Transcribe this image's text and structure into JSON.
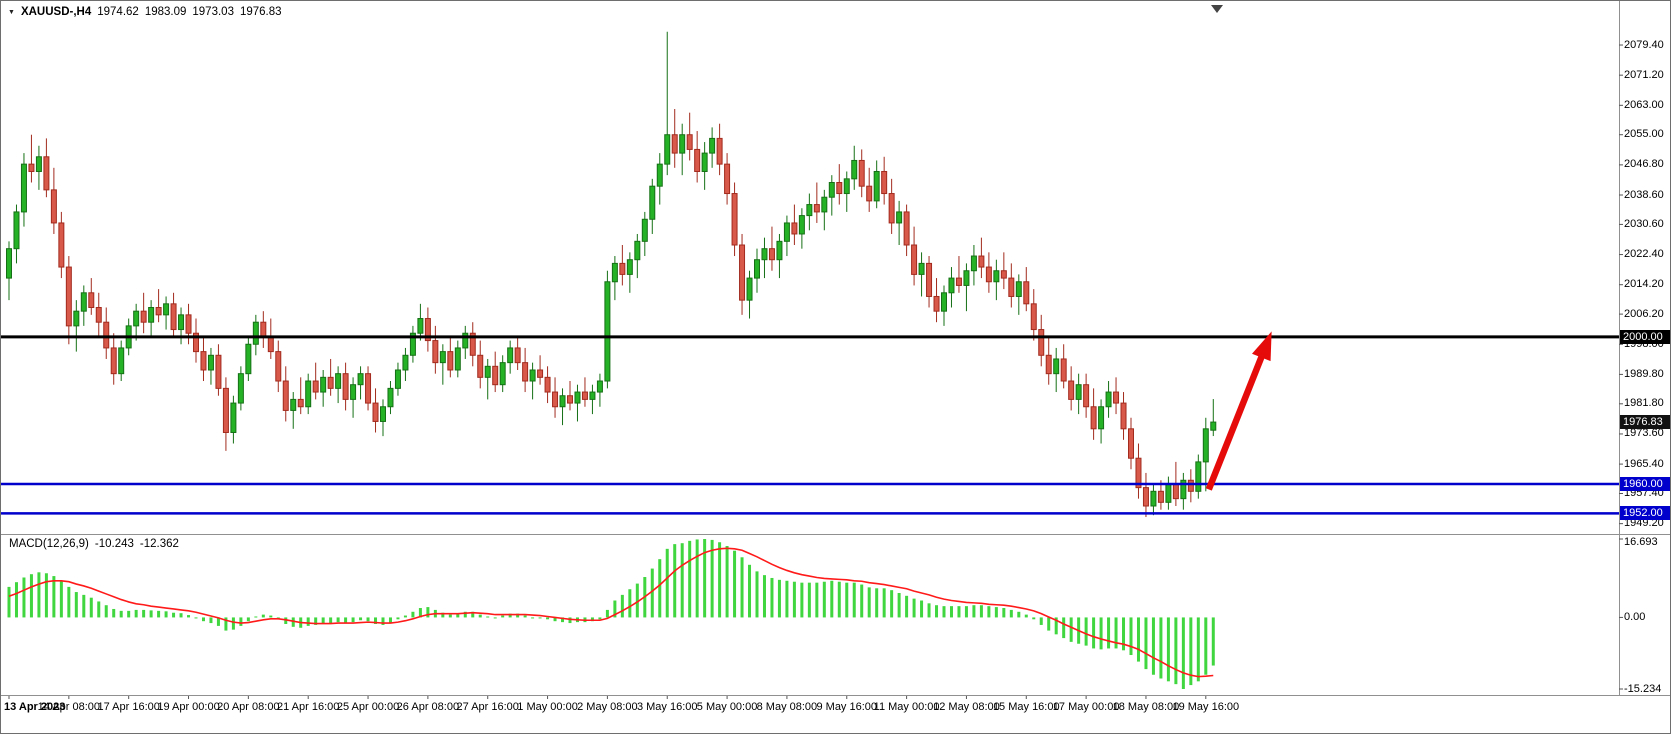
{
  "icons": {
    "dropdown": "▼"
  },
  "header": {
    "symbol_period": "XAUUSD-,H4",
    "open": "1974.62",
    "high": "1983.09",
    "low": "1973.03",
    "close": "1976.83"
  },
  "macd_label": {
    "name": "MACD(12,26,9)",
    "main": "-10.243",
    "signal": "-12.362"
  },
  "chart_data": {
    "type": "candlestick",
    "symbol": "XAUUSD-",
    "timeframe": "H4",
    "title": "XAUUSD- H4 candlestick chart with MACD(12,26,9), support lines at 1960.00 / 1952.00, resistance at 2000.00 and red up-arrow annotation",
    "colors": {
      "candle_up": "#26b226",
      "candle_up_border": "#157015",
      "candle_down": "#d8584a",
      "candle_down_border": "#a22b1e",
      "macd_histogram": "#3fd63f",
      "macd_signal": "#ff1a1a",
      "level_black": "#000000",
      "level_blue": "#0000cc",
      "arrow": "#e60b0b",
      "badge_current": "#111111"
    },
    "price_panel": {
      "ylim": [
        1947.2,
        2089.2
      ],
      "current_price": 1976.83
    },
    "hlines": [
      {
        "price": 2000.0,
        "color": "#000000",
        "width": 3
      },
      {
        "price": 1960.0,
        "color": "#0000cc",
        "width": 2.5
      },
      {
        "price": 1952.0,
        "color": "#0000cc",
        "width": 2.5
      }
    ],
    "candles": [
      [
        2016,
        2026,
        2010,
        2024
      ],
      [
        2024,
        2036,
        2020,
        2034
      ],
      [
        2034,
        2050,
        2030,
        2047
      ],
      [
        2047,
        2055,
        2042,
        2045
      ],
      [
        2045,
        2052,
        2040,
        2049
      ],
      [
        2049,
        2054,
        2038,
        2040
      ],
      [
        2040,
        2046,
        2028,
        2031
      ],
      [
        2031,
        2034,
        2016,
        2019
      ],
      [
        2019,
        2022,
        1998,
        2003
      ],
      [
        2003,
        2010,
        1996,
        2007
      ],
      [
        2007,
        2014,
        2003,
        2012
      ],
      [
        2012,
        2016,
        2006,
        2008
      ],
      [
        2008,
        2012,
        2000,
        2004
      ],
      [
        2004,
        2008,
        1994,
        1997
      ],
      [
        1997,
        2001,
        1987,
        1990
      ],
      [
        1990,
        1999,
        1988,
        1997
      ],
      [
        1997,
        2005,
        1995,
        2003
      ],
      [
        2003,
        2009,
        1999,
        2007
      ],
      [
        2007,
        2012,
        2001,
        2004
      ],
      [
        2004,
        2010,
        2000,
        2008
      ],
      [
        2008,
        2013,
        2004,
        2006
      ],
      [
        2006,
        2011,
        2002,
        2009
      ],
      [
        2009,
        2012,
        2000,
        2002
      ],
      [
        2002,
        2008,
        1998,
        2006
      ],
      [
        2006,
        2009,
        1998,
        2001
      ],
      [
        2001,
        2005,
        1993,
        1996
      ],
      [
        1996,
        2000,
        1988,
        1991
      ],
      [
        1991,
        1997,
        1987,
        1995
      ],
      [
        1995,
        1998,
        1984,
        1986
      ],
      [
        1986,
        1989,
        1969,
        1974
      ],
      [
        1974,
        1984,
        1971,
        1982
      ],
      [
        1982,
        1992,
        1980,
        1990
      ],
      [
        1990,
        2000,
        1988,
        1998
      ],
      [
        1998,
        2006,
        1995,
        2004
      ],
      [
        2004,
        2007,
        1997,
        2000
      ],
      [
        2000,
        2005,
        1994,
        1996
      ],
      [
        1996,
        1999,
        1985,
        1988
      ],
      [
        1988,
        1992,
        1977,
        1980
      ],
      [
        1980,
        1985,
        1975,
        1983
      ],
      [
        1983,
        1989,
        1979,
        1981
      ],
      [
        1981,
        1990,
        1979,
        1988
      ],
      [
        1988,
        1993,
        1983,
        1985
      ],
      [
        1985,
        1991,
        1981,
        1989
      ],
      [
        1989,
        1994,
        1984,
        1986
      ],
      [
        1986,
        1992,
        1982,
        1990
      ],
      [
        1990,
        1993,
        1980,
        1983
      ],
      [
        1983,
        1989,
        1978,
        1987
      ],
      [
        1987,
        1992,
        1983,
        1990
      ],
      [
        1990,
        1992,
        1980,
        1982
      ],
      [
        1982,
        1986,
        1974,
        1977
      ],
      [
        1977,
        1983,
        1973,
        1981
      ],
      [
        1981,
        1988,
        1979,
        1986
      ],
      [
        1986,
        1993,
        1984,
        1991
      ],
      [
        1991,
        1997,
        1988,
        1995
      ],
      [
        1995,
        2003,
        1993,
        2001
      ],
      [
        2001,
        2009,
        1999,
        2005
      ],
      [
        2005,
        2008,
        1996,
        1999
      ],
      [
        1999,
        2003,
        1990,
        1993
      ],
      [
        1993,
        1998,
        1987,
        1996
      ],
      [
        1996,
        2000,
        1989,
        1991
      ],
      [
        1991,
        1999,
        1989,
        1997
      ],
      [
        1997,
        2003,
        1994,
        2001
      ],
      [
        2001,
        2004,
        1992,
        1995
      ],
      [
        1995,
        1999,
        1986,
        1989
      ],
      [
        1989,
        1994,
        1983,
        1992
      ],
      [
        1992,
        1996,
        1985,
        1987
      ],
      [
        1987,
        1995,
        1985,
        1993
      ],
      [
        1993,
        1999,
        1990,
        1997
      ],
      [
        1997,
        2000,
        1991,
        1993
      ],
      [
        1993,
        1997,
        1985,
        1988
      ],
      [
        1988,
        1993,
        1983,
        1991
      ],
      [
        1991,
        1995,
        1987,
        1989
      ],
      [
        1989,
        1992,
        1982,
        1985
      ],
      [
        1985,
        1989,
        1978,
        1981
      ],
      [
        1981,
        1986,
        1976,
        1984
      ],
      [
        1984,
        1988,
        1980,
        1982
      ],
      [
        1982,
        1987,
        1977,
        1985
      ],
      [
        1985,
        1989,
        1981,
        1983
      ],
      [
        1983,
        1987,
        1979,
        1985
      ],
      [
        1985,
        1990,
        1981,
        1988
      ],
      [
        1988,
        2018,
        1986,
        2015
      ],
      [
        2015,
        2022,
        2010,
        2020
      ],
      [
        2020,
        2025,
        2014,
        2017
      ],
      [
        2017,
        2023,
        2012,
        2021
      ],
      [
        2021,
        2028,
        2016,
        2026
      ],
      [
        2026,
        2034,
        2022,
        2032
      ],
      [
        2032,
        2043,
        2028,
        2041
      ],
      [
        2041,
        2050,
        2036,
        2047
      ],
      [
        2047,
        2083,
        2044,
        2055
      ],
      [
        2055,
        2062,
        2046,
        2050
      ],
      [
        2050,
        2058,
        2044,
        2055
      ],
      [
        2055,
        2061,
        2048,
        2051
      ],
      [
        2051,
        2056,
        2042,
        2045
      ],
      [
        2045,
        2053,
        2040,
        2050
      ],
      [
        2050,
        2057,
        2046,
        2054
      ],
      [
        2054,
        2058,
        2044,
        2047
      ],
      [
        2047,
        2050,
        2036,
        2039
      ],
      [
        2039,
        2042,
        2022,
        2025
      ],
      [
        2025,
        2028,
        2006,
        2010
      ],
      [
        2010,
        2018,
        2005,
        2016
      ],
      [
        2016,
        2024,
        2012,
        2021
      ],
      [
        2021,
        2027,
        2016,
        2024
      ],
      [
        2024,
        2030,
        2018,
        2021
      ],
      [
        2021,
        2028,
        2016,
        2026
      ],
      [
        2026,
        2033,
        2022,
        2031
      ],
      [
        2031,
        2036,
        2025,
        2028
      ],
      [
        2028,
        2035,
        2024,
        2033
      ],
      [
        2033,
        2039,
        2029,
        2036
      ],
      [
        2036,
        2042,
        2031,
        2034
      ],
      [
        2034,
        2040,
        2029,
        2038
      ],
      [
        2038,
        2044,
        2033,
        2042
      ],
      [
        2042,
        2047,
        2036,
        2039
      ],
      [
        2039,
        2045,
        2034,
        2043
      ],
      [
        2043,
        2052,
        2040,
        2048
      ],
      [
        2048,
        2051,
        2038,
        2041
      ],
      [
        2041,
        2046,
        2034,
        2037
      ],
      [
        2037,
        2048,
        2035,
        2045
      ],
      [
        2045,
        2049,
        2036,
        2039
      ],
      [
        2039,
        2043,
        2028,
        2031
      ],
      [
        2031,
        2037,
        2025,
        2034
      ],
      [
        2034,
        2036,
        2022,
        2025
      ],
      [
        2025,
        2030,
        2014,
        2017
      ],
      [
        2017,
        2023,
        2011,
        2020
      ],
      [
        2020,
        2022,
        2008,
        2011
      ],
      [
        2011,
        2016,
        2004,
        2007
      ],
      [
        2007,
        2014,
        2003,
        2012
      ],
      [
        2012,
        2019,
        2008,
        2016
      ],
      [
        2016,
        2022,
        2012,
        2014
      ],
      [
        2014,
        2020,
        2007,
        2018
      ],
      [
        2018,
        2025,
        2014,
        2022
      ],
      [
        2022,
        2027,
        2016,
        2019
      ],
      [
        2019,
        2023,
        2012,
        2015
      ],
      [
        2015,
        2021,
        2010,
        2018
      ],
      [
        2018,
        2023,
        2013,
        2016
      ],
      [
        2016,
        2020,
        2008,
        2011
      ],
      [
        2011,
        2017,
        2006,
        2015
      ],
      [
        2015,
        2019,
        2007,
        2009
      ],
      [
        2009,
        2013,
        1999,
        2002
      ],
      [
        2002,
        2006,
        1992,
        1995
      ],
      [
        1995,
        2000,
        1987,
        1990
      ],
      [
        1990,
        1997,
        1985,
        1994
      ],
      [
        1994,
        1998,
        1986,
        1988
      ],
      [
        1988,
        1992,
        1980,
        1983
      ],
      [
        1983,
        1990,
        1979,
        1987
      ],
      [
        1987,
        1990,
        1978,
        1981
      ],
      [
        1981,
        1986,
        1972,
        1975
      ],
      [
        1975,
        1983,
        1971,
        1981
      ],
      [
        1981,
        1988,
        1978,
        1985
      ],
      [
        1985,
        1989,
        1979,
        1982
      ],
      [
        1982,
        1985,
        1972,
        1975
      ],
      [
        1975,
        1978,
        1964,
        1967
      ],
      [
        1967,
        1971,
        1956,
        1959
      ],
      [
        1959,
        1963,
        1951,
        1954
      ],
      [
        1954,
        1960,
        1951.5,
        1958
      ],
      [
        1958,
        1961,
        1953,
        1955
      ],
      [
        1955,
        1962,
        1953,
        1960
      ],
      [
        1960,
        1966,
        1954,
        1956
      ],
      [
        1956,
        1963,
        1953,
        1961
      ],
      [
        1961,
        1964,
        1955,
        1958
      ],
      [
        1958,
        1968,
        1956,
        1966
      ],
      [
        1966,
        1978,
        1958,
        1975
      ],
      [
        1974.62,
        1983.09,
        1973.03,
        1976.83
      ]
    ],
    "macd": {
      "ylim": [
        -15.234,
        16.693
      ],
      "histogram": [
        6.5,
        7.5,
        8.5,
        9.2,
        9.6,
        9.4,
        8.8,
        7.8,
        6.5,
        5.4,
        4.8,
        4.2,
        3.4,
        2.6,
        1.8,
        1.4,
        1.4,
        1.6,
        1.6,
        1.5,
        1.4,
        1.3,
        1.0,
        0.9,
        0.5,
        0.0,
        -0.8,
        -1.2,
        -1.8,
        -2.8,
        -2.6,
        -1.8,
        -0.8,
        0.2,
        0.6,
        0.4,
        -0.4,
        -1.4,
        -2.0,
        -2.2,
        -1.8,
        -1.6,
        -1.4,
        -1.2,
        -1.0,
        -1.2,
        -1.0,
        -0.6,
        -0.8,
        -1.4,
        -1.6,
        -1.2,
        -0.4,
        0.4,
        1.2,
        2.0,
        2.2,
        1.6,
        1.0,
        0.6,
        0.8,
        1.2,
        1.2,
        0.6,
        0.2,
        0.0,
        0.4,
        0.8,
        0.8,
        0.4,
        0.0,
        0.0,
        -0.4,
        -0.8,
        -1.0,
        -1.2,
        -1.0,
        -1.0,
        -0.8,
        -0.4,
        1.6,
        3.6,
        4.8,
        6.0,
        7.2,
        8.6,
        10.4,
        12.4,
        14.6,
        15.6,
        15.8,
        16.3,
        16.6,
        16.693,
        16.5,
        16.0,
        15.2,
        14.2,
        12.8,
        11.2,
        9.8,
        9.0,
        8.4,
        8.0,
        7.8,
        7.6,
        7.4,
        7.4,
        7.4,
        7.6,
        7.8,
        7.6,
        7.4,
        7.4,
        7.0,
        6.4,
        6.2,
        6.2,
        5.8,
        5.2,
        4.6,
        4.0,
        3.6,
        3.0,
        2.6,
        2.4,
        2.4,
        2.4,
        2.4,
        2.6,
        2.6,
        2.4,
        2.2,
        2.0,
        1.6,
        1.2,
        0.6,
        -0.4,
        -1.6,
        -2.8,
        -3.6,
        -4.4,
        -5.2,
        -5.6,
        -6.0,
        -6.6,
        -6.8,
        -6.6,
        -6.6,
        -7.0,
        -8.0,
        -9.4,
        -11.0,
        -12.2,
        -13.0,
        -13.6,
        -14.2,
        -15.234,
        -14.4,
        -13.6,
        -12.2,
        -10.243
      ],
      "signal": [
        4.5,
        5.1,
        5.8,
        6.5,
        7.1,
        7.6,
        7.8,
        7.8,
        7.6,
        7.1,
        6.7,
        6.2,
        5.6,
        5.0,
        4.4,
        3.8,
        3.3,
        2.9,
        2.7,
        2.4,
        2.2,
        2.0,
        1.8,
        1.6,
        1.4,
        1.1,
        0.7,
        0.3,
        -0.1,
        -0.6,
        -1.0,
        -1.2,
        -1.1,
        -0.8,
        -0.5,
        -0.3,
        -0.3,
        -0.5,
        -0.8,
        -1.1,
        -1.2,
        -1.3,
        -1.3,
        -1.3,
        -1.2,
        -1.2,
        -1.2,
        -1.1,
        -1.0,
        -1.1,
        -1.2,
        -1.2,
        -1.0,
        -0.7,
        -0.3,
        0.2,
        0.6,
        0.8,
        0.8,
        0.8,
        0.8,
        0.9,
        1.0,
        0.9,
        0.8,
        0.6,
        0.6,
        0.6,
        0.6,
        0.6,
        0.5,
        0.4,
        0.2,
        0.0,
        -0.2,
        -0.4,
        -0.5,
        -0.6,
        -0.6,
        -0.6,
        -0.2,
        0.6,
        1.4,
        2.3,
        3.3,
        4.4,
        5.6,
        6.9,
        8.4,
        9.9,
        11.1,
        12.1,
        13.0,
        13.8,
        14.3,
        14.6,
        14.7,
        14.6,
        14.3,
        13.6,
        12.9,
        12.1,
        11.3,
        10.6,
        10.0,
        9.5,
        9.1,
        8.8,
        8.5,
        8.3,
        8.2,
        8.1,
        8.0,
        7.8,
        7.7,
        7.4,
        7.2,
        7.0,
        6.7,
        6.4,
        6.1,
        5.6,
        5.2,
        4.8,
        4.3,
        3.9,
        3.6,
        3.4,
        3.2,
        3.1,
        3.0,
        2.8,
        2.7,
        2.6,
        2.4,
        2.1,
        1.8,
        1.4,
        0.8,
        0.1,
        -0.6,
        -1.4,
        -2.1,
        -2.8,
        -3.5,
        -4.1,
        -4.6,
        -5.0,
        -5.4,
        -5.7,
        -6.2,
        -6.8,
        -7.7,
        -8.6,
        -9.4,
        -10.3,
        -11.1,
        -11.8,
        -12.3,
        -12.6,
        -12.5,
        -12.362
      ]
    },
    "price_axis": {
      "ticks": [
        "2079.40",
        "2071.20",
        "2063.00",
        "2055.00",
        "2046.80",
        "2038.60",
        "2030.60",
        "2022.40",
        "2014.20",
        "2006.20",
        "1998.00",
        "1989.80",
        "1981.80",
        "1973.60",
        "1965.40",
        "1957.40",
        "1949.20"
      ],
      "badges": [
        {
          "text": "2000.00",
          "color": "#000000"
        },
        {
          "text": "1976.83",
          "color": "#111111"
        },
        {
          "text": "1960.00",
          "color": "#0000cc"
        },
        {
          "text": "1952.00",
          "color": "#0000cc"
        }
      ]
    },
    "macd_axis": {
      "ticks": [
        "16.693",
        "0.00",
        "-15.234"
      ]
    },
    "time_axis": {
      "label_step": 8,
      "labels": [
        "13 Apr 2023",
        "14 Apr 08:00",
        "17 Apr 16:00",
        "19 Apr 00:00",
        "20 Apr 08:00",
        "21 Apr 16:00",
        "25 Apr 00:00",
        "26 Apr 08:00",
        "27 Apr 16:00",
        "1 May 00:00",
        "2 May 08:00",
        "3 May 16:00",
        "5 May 00:00",
        "8 May 08:00",
        "9 May 16:00",
        "11 May 00:00",
        "12 May 08:00",
        "15 May 16:00",
        "17 May 00:00",
        "18 May 08:00",
        "19 May 16:00"
      ]
    },
    "arrow": {
      "from_index": 160.4,
      "from_price": 1958.5,
      "to_index": 168.8,
      "to_price": 2001.5,
      "color": "#e60b0b"
    }
  }
}
